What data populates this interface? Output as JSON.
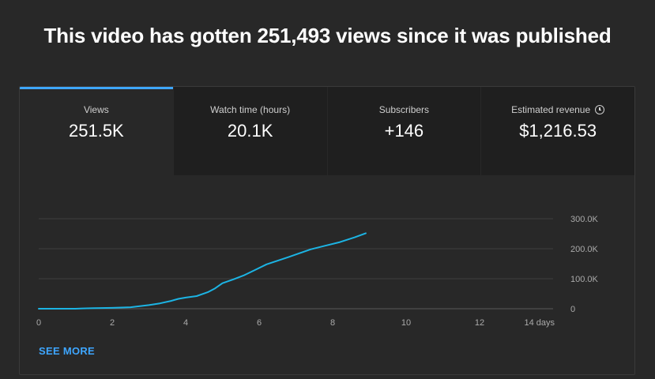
{
  "headline": "This video has gotten 251,493 views since it was published",
  "tabs": [
    {
      "label": "Views",
      "value": "251.5K",
      "active": true
    },
    {
      "label": "Watch time (hours)",
      "value": "20.1K",
      "active": false
    },
    {
      "label": "Subscribers",
      "value": "+146",
      "active": false
    },
    {
      "label": "Estimated revenue",
      "value": "$1,216.53",
      "active": false,
      "icon": "clock-icon"
    }
  ],
  "see_more_label": "SEE MORE",
  "colors": {
    "background": "#282828",
    "tab_inactive": "#1f1f1f",
    "accent": "#3ea6ff",
    "line": "#1cb4e4",
    "gridline": "#3e3e3e"
  },
  "chart_data": {
    "type": "line",
    "title": "",
    "xlabel": "",
    "ylabel": "",
    "xlim": [
      0,
      14
    ],
    "ylim": [
      0,
      300000
    ],
    "x_ticks": [
      0,
      2,
      4,
      6,
      8,
      10,
      12,
      14
    ],
    "x_tick_labels": [
      "0",
      "2",
      "4",
      "6",
      "8",
      "10",
      "12",
      "14 days"
    ],
    "y_ticks": [
      0,
      100000,
      200000,
      300000
    ],
    "y_tick_labels": [
      "0",
      "100.0K",
      "200.0K",
      "300.0K"
    ],
    "grid": true,
    "series": [
      {
        "name": "",
        "x": [
          0,
          0.5,
          1,
          1.2,
          1.5,
          2,
          2.5,
          3,
          3.3,
          3.6,
          3.8,
          4,
          4.3,
          4.6,
          4.8,
          5,
          5.3,
          5.6,
          5.9,
          6.2,
          6.5,
          6.8,
          7.1,
          7.4,
          7.8,
          8.2,
          8.6,
          8.9
        ],
        "y": [
          0,
          0,
          0,
          1000,
          2000,
          3000,
          5000,
          12000,
          18000,
          26000,
          33000,
          37000,
          42000,
          55000,
          68000,
          85000,
          98000,
          112000,
          130000,
          148000,
          160000,
          172000,
          185000,
          198000,
          210000,
          222000,
          238000,
          251500
        ]
      }
    ]
  }
}
